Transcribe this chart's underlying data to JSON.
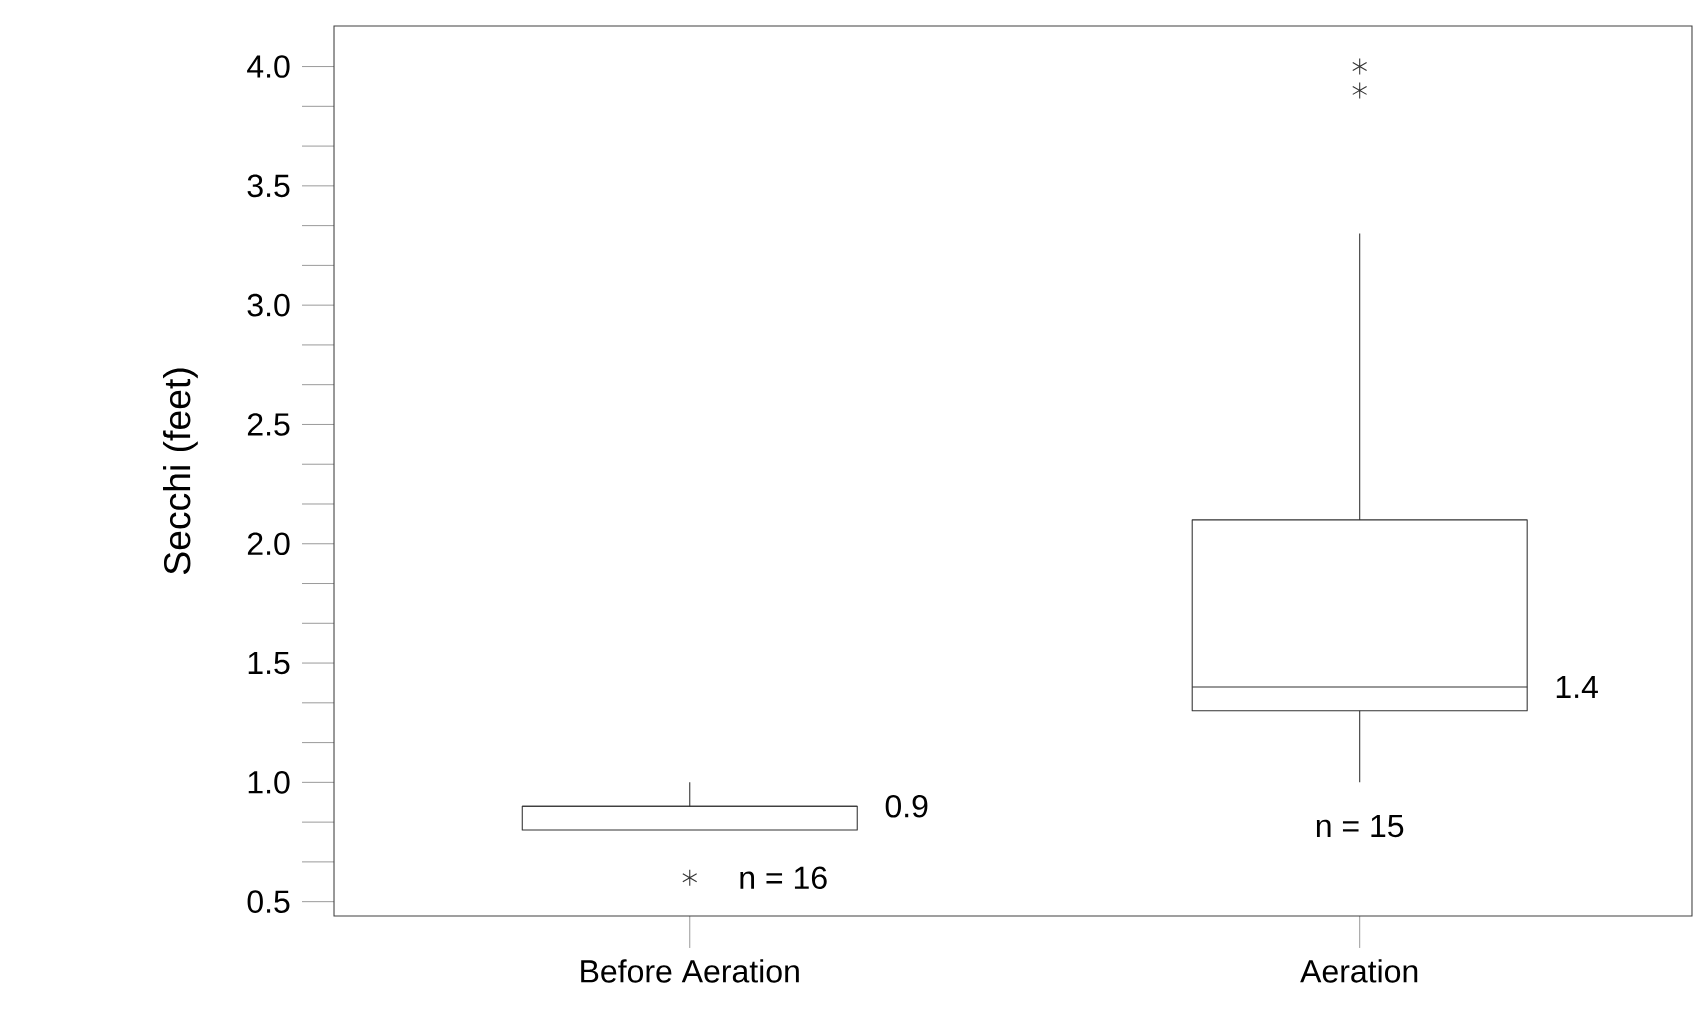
{
  "chart_data": {
    "type": "box",
    "ylabel": "Secchi (feet)",
    "categories": [
      "Before Aeration",
      "Aeration"
    ],
    "boxes": [
      {
        "low": 0.8,
        "q1": 0.8,
        "median": 0.9,
        "q3": 0.9,
        "high": 1.0,
        "outliers": [
          0.6
        ]
      },
      {
        "low": 1.0,
        "q1": 1.3,
        "median": 1.4,
        "q3": 2.1,
        "high": 3.3,
        "outliers": [
          4.0,
          3.9
        ]
      }
    ],
    "ylim": [
      0.44,
      4.17
    ],
    "yticks": [
      {
        "value": 0.5,
        "label": "0.5"
      },
      {
        "value": 1.0,
        "label": "1.0"
      },
      {
        "value": 1.5,
        "label": "1.5"
      },
      {
        "value": 2.0,
        "label": "2.0"
      },
      {
        "value": 2.5,
        "label": "2.5"
      },
      {
        "value": 3.0,
        "label": "3.0"
      },
      {
        "value": 3.5,
        "label": "3.5"
      },
      {
        "value": 4.0,
        "label": "4.0"
      }
    ],
    "marker": "star",
    "annotations": [
      "0.9",
      "n = 16",
      "1.4",
      "n = 15"
    ]
  }
}
